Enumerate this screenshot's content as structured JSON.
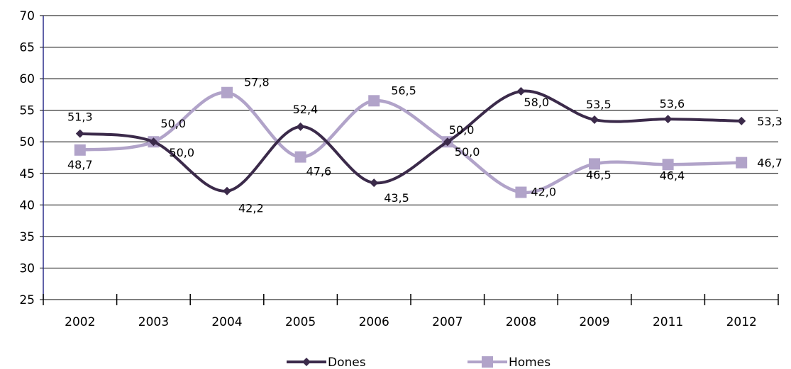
{
  "chart_data": {
    "type": "line",
    "title": "",
    "xlabel": "",
    "ylabel": "",
    "categories": [
      "2002",
      "2003",
      "2004",
      "2005",
      "2006",
      "2007",
      "2008",
      "2009",
      "2011",
      "2012"
    ],
    "ylim": [
      25,
      70
    ],
    "yticks": [
      25,
      30,
      35,
      40,
      45,
      50,
      55,
      60,
      65,
      70
    ],
    "grid": "horizontal",
    "legend_position": "bottom",
    "series": [
      {
        "name": "Dones",
        "color": "#3b2a4a",
        "marker": "diamond",
        "values": [
          51.3,
          50.0,
          42.2,
          52.4,
          43.5,
          50.0,
          58.0,
          53.5,
          53.6,
          53.3
        ],
        "labels": [
          "51,3",
          "50,0",
          "42,2",
          "52,4",
          "43,5",
          "50,0",
          "58,0",
          "53,5",
          "53,6",
          "53,3"
        ]
      },
      {
        "name": "Homes",
        "color": "#b1a3c9",
        "marker": "square",
        "values": [
          48.7,
          50.0,
          57.8,
          47.6,
          56.5,
          50.0,
          42.0,
          46.5,
          46.4,
          46.7
        ],
        "labels": [
          "48,7",
          "50,0",
          "57,8",
          "47,6",
          "56,5",
          "50,0",
          "42,0",
          "46,5",
          "46,4",
          "46,7"
        ]
      }
    ]
  }
}
